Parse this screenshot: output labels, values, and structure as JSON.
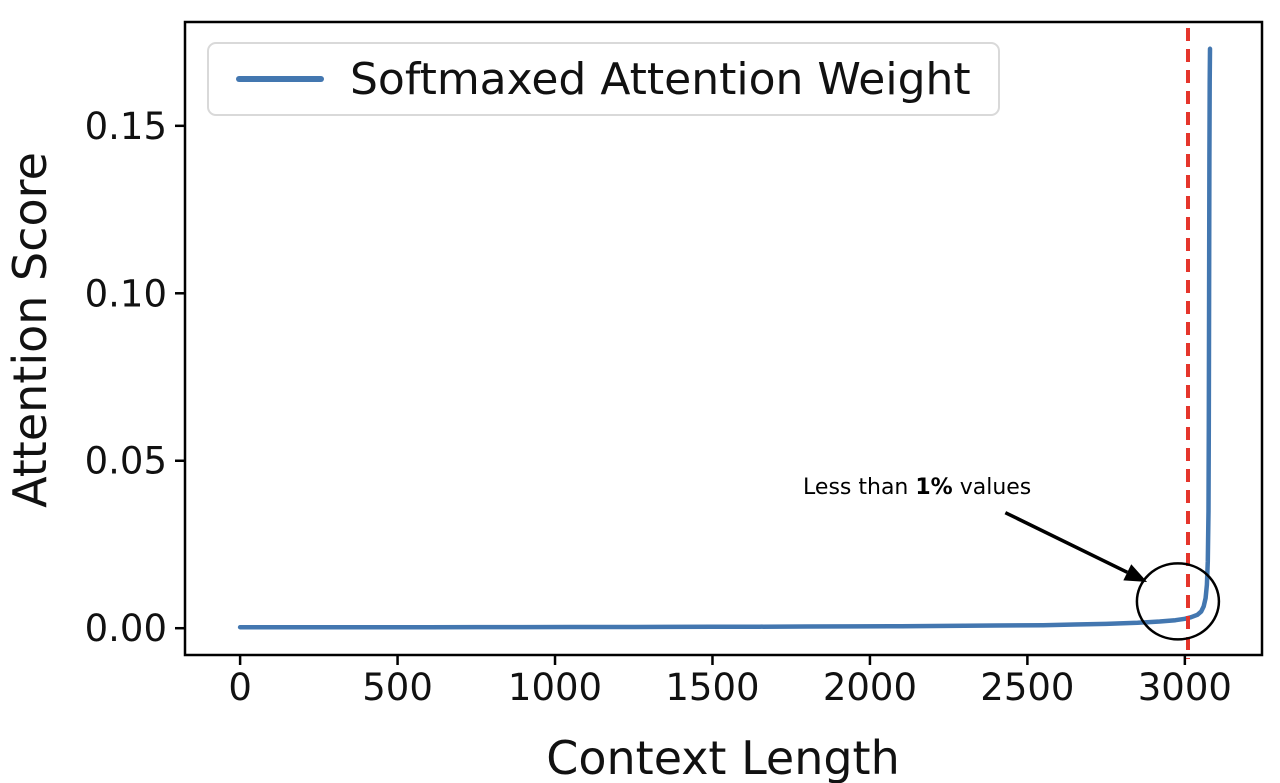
{
  "page": {
    "background": "#ffffff"
  },
  "chart_data": {
    "type": "line",
    "title": "",
    "xlabel": "Context Length",
    "ylabel": "Attention Score",
    "xlim": [
      -175,
      3245
    ],
    "ylim": [
      -0.008,
      0.181
    ],
    "grid": false,
    "xticks": [
      0,
      500,
      1000,
      1500,
      2000,
      2500,
      3000
    ],
    "xtick_labels": [
      "0",
      "500",
      "1000",
      "1500",
      "2000",
      "2500",
      "3000"
    ],
    "yticks": [
      0.0,
      0.05,
      0.1,
      0.15
    ],
    "ytick_labels": [
      "0.00",
      "0.05",
      "0.10",
      "0.15"
    ],
    "legend": {
      "position": "upper-left",
      "entries": [
        {
          "label": "Softmaxed Attention Weight",
          "color": "#4377b0"
        }
      ]
    },
    "series": [
      {
        "name": "Softmaxed Attention Weight",
        "color": "#4377b0",
        "linewidth": 4.5,
        "points": [
          [
            0,
            0.0003
          ],
          [
            150,
            0.0003
          ],
          [
            300,
            0.0003
          ],
          [
            450,
            0.0003
          ],
          [
            600,
            0.0003
          ],
          [
            750,
            0.00032
          ],
          [
            900,
            0.00033
          ],
          [
            1050,
            0.00035
          ],
          [
            1200,
            0.00037
          ],
          [
            1350,
            0.0004
          ],
          [
            1500,
            0.00042
          ],
          [
            1650,
            0.00045
          ],
          [
            1800,
            0.0005
          ],
          [
            1950,
            0.00055
          ],
          [
            2100,
            0.0006
          ],
          [
            2250,
            0.0007
          ],
          [
            2400,
            0.0008
          ],
          [
            2550,
            0.0009
          ],
          [
            2650,
            0.0011
          ],
          [
            2750,
            0.0013
          ],
          [
            2850,
            0.0016
          ],
          [
            2920,
            0.002
          ],
          [
            2970,
            0.0024
          ],
          [
            3000,
            0.0028
          ],
          [
            3020,
            0.0033
          ],
          [
            3040,
            0.004
          ],
          [
            3052,
            0.005
          ],
          [
            3060,
            0.0065
          ],
          [
            3066,
            0.009
          ],
          [
            3070,
            0.013
          ],
          [
            3073,
            0.02
          ],
          [
            3075,
            0.035
          ],
          [
            3076,
            0.06
          ],
          [
            3077,
            0.1
          ],
          [
            3078,
            0.14
          ],
          [
            3079,
            0.163
          ],
          [
            3080,
            0.173
          ]
        ]
      }
    ],
    "vline": {
      "x": 3010,
      "color": "#e5352b",
      "style": "dashed",
      "linewidth": 4
    },
    "annotation": {
      "text": "Less than 1% values",
      "parts": [
        {
          "t": "Less than ",
          "bold": false
        },
        {
          "t": "1%",
          "bold": true
        },
        {
          "t": " values",
          "bold": false
        }
      ],
      "text_xy": [
        2150,
        0.042
      ],
      "arrow_start_xy": [
        2430,
        0.0345
      ],
      "arrow_end_xy": [
        2880,
        0.0138
      ],
      "circle_center_xy": [
        2978,
        0.008
      ],
      "circle_radius_px": [
        41,
        38
      ]
    }
  }
}
